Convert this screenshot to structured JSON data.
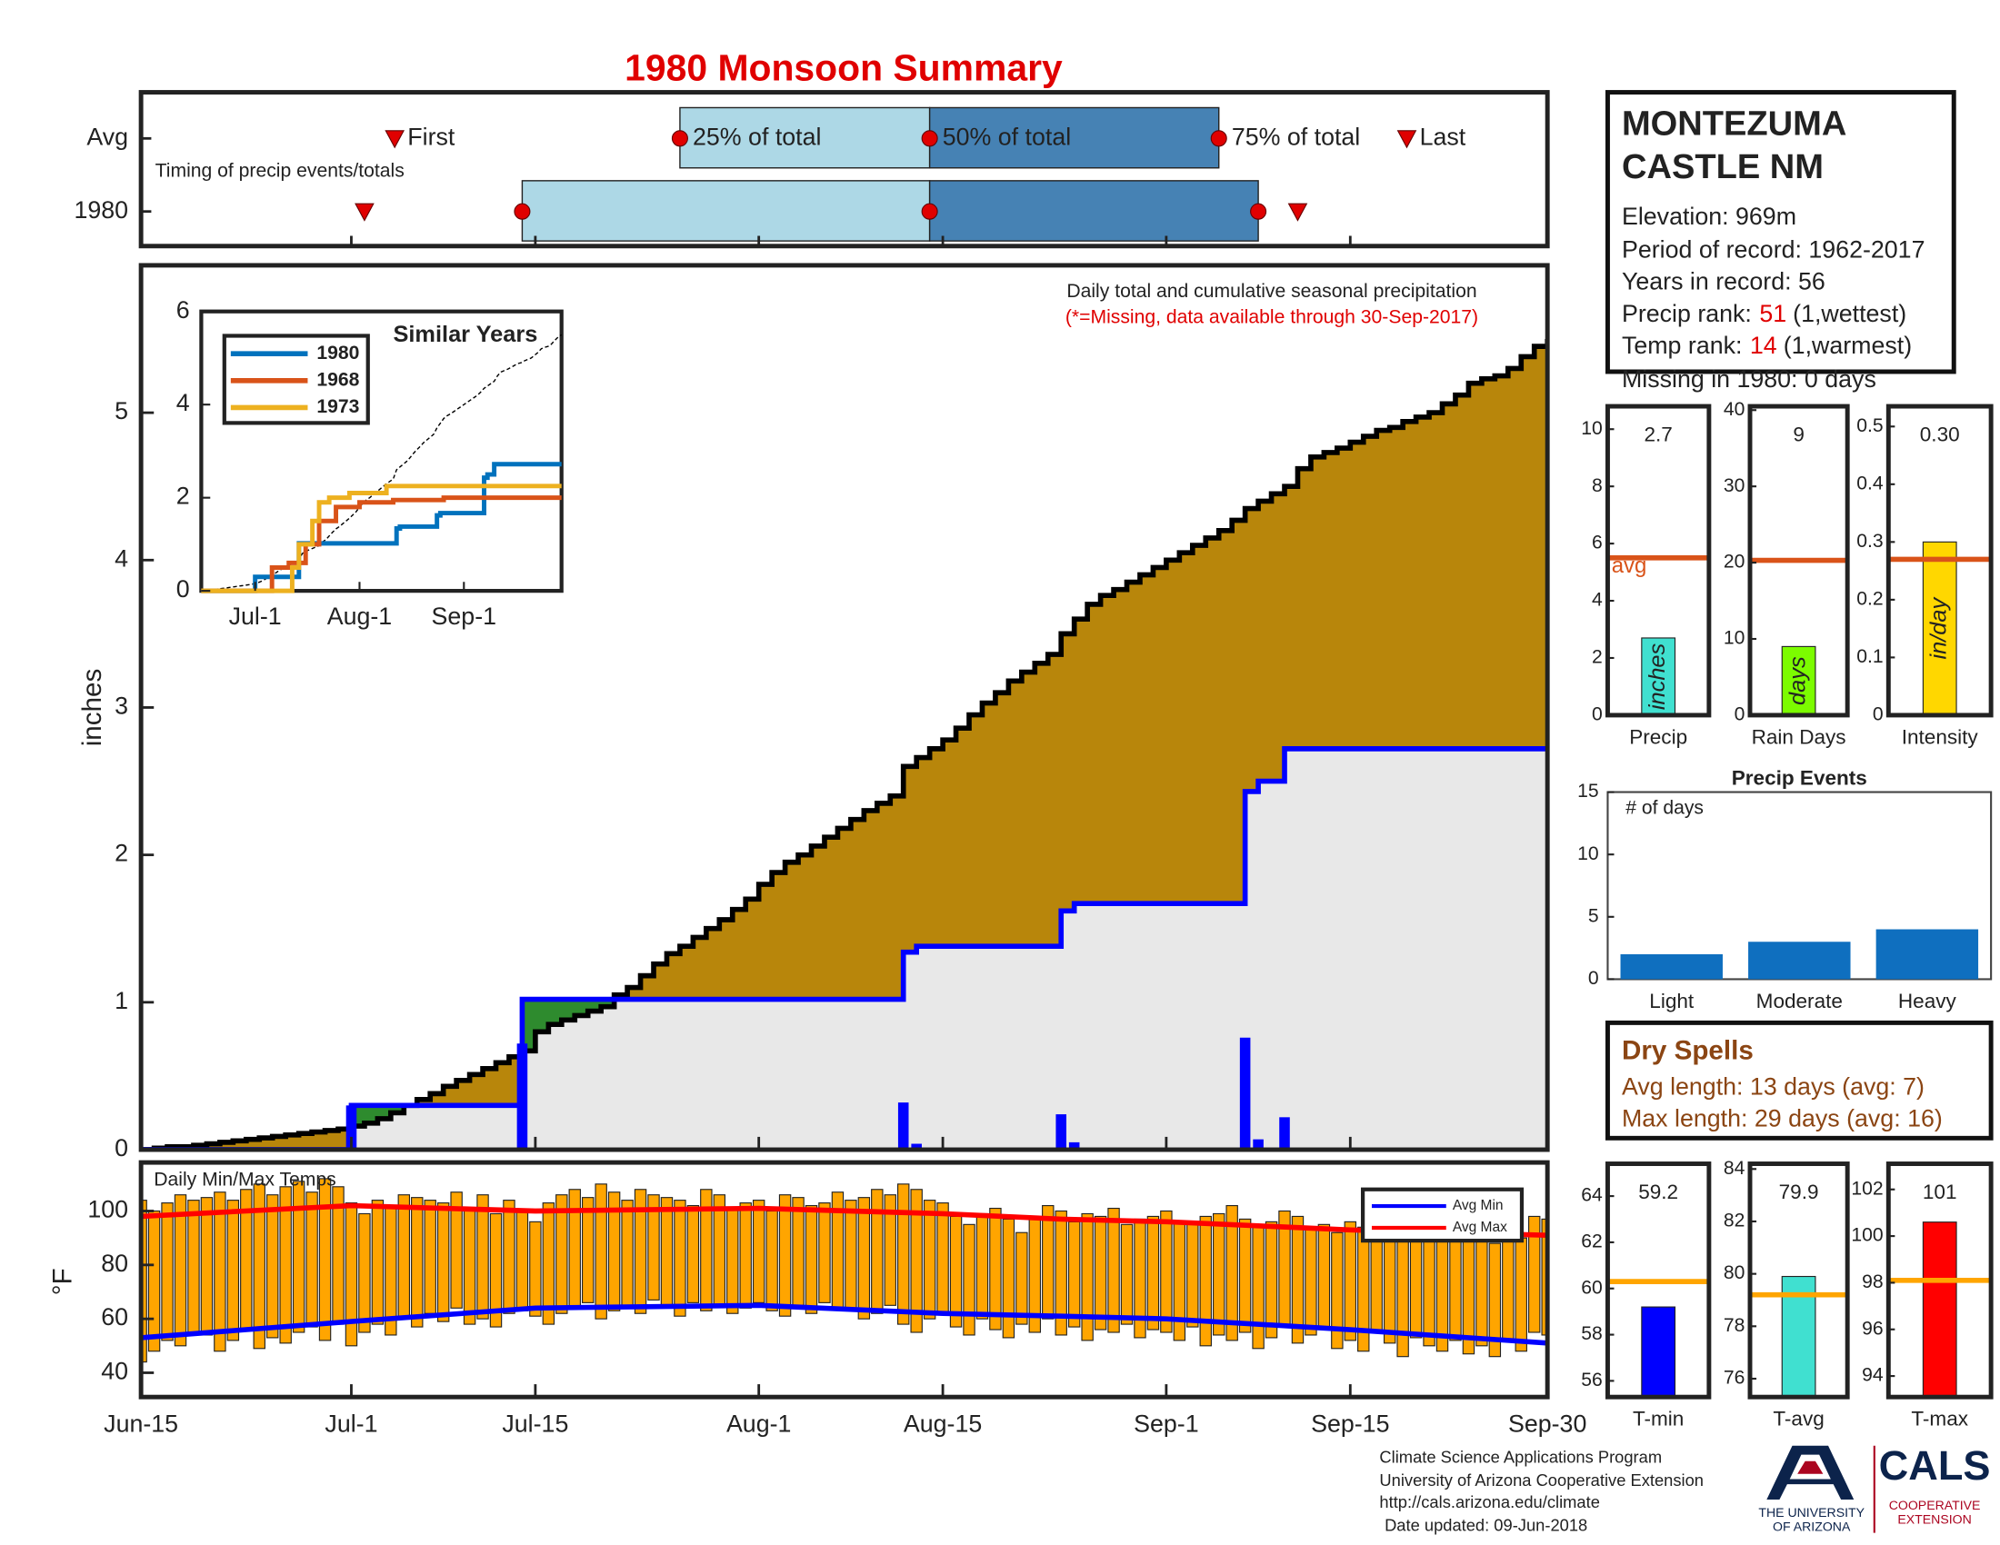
{
  "chart_data": [
    {
      "type": "timing",
      "title": "1980 Monsoon Summary",
      "annotation": "Timing of precip events/totals",
      "marker_labels": [
        "First",
        "25% of total",
        "50% of total",
        "75% of total",
        "Last"
      ],
      "series": [
        {
          "name": "Avg",
          "values": [
            19.3,
            41,
            60,
            82,
            96.3
          ]
        },
        {
          "name": "1980",
          "values": [
            17,
            29,
            60,
            85,
            88
          ]
        }
      ],
      "xlim": [
        0,
        107
      ],
      "box_colors": [
        "#add8e6",
        "#4682b4"
      ],
      "marker_color": "#e00000"
    },
    {
      "type": "cumulative-precip",
      "annotation": "Daily total and cumulative seasonal precipitation",
      "note": "(*=Missing, data available through 30-Sep-2017)",
      "ylabel": "inches",
      "xlim": [
        0,
        107
      ],
      "ylim": [
        0,
        6
      ],
      "yticks": [
        0,
        1,
        2,
        3,
        4,
        5
      ],
      "x": [
        0,
        1,
        2,
        3,
        4,
        5,
        6,
        7,
        8,
        9,
        10,
        11,
        12,
        13,
        14,
        15,
        16,
        17,
        18,
        19,
        20,
        21,
        22,
        23,
        24,
        25,
        26,
        27,
        28,
        29,
        30,
        31,
        32,
        33,
        34,
        35,
        36,
        37,
        38,
        39,
        40,
        41,
        42,
        43,
        44,
        45,
        46,
        47,
        48,
        49,
        50,
        51,
        52,
        53,
        54,
        55,
        56,
        57,
        58,
        59,
        60,
        61,
        62,
        63,
        64,
        65,
        66,
        67,
        68,
        69,
        70,
        71,
        72,
        73,
        74,
        75,
        76,
        77,
        78,
        79,
        80,
        81,
        82,
        83,
        84,
        85,
        86,
        87,
        88,
        89,
        90,
        91,
        92,
        93,
        94,
        95,
        96,
        97,
        98,
        99,
        100,
        101,
        102,
        103,
        104,
        105,
        106,
        107
      ],
      "average": {
        "color": "#b8860b",
        "values": [
          0,
          0.01,
          0.02,
          0.02,
          0.03,
          0.04,
          0.05,
          0.06,
          0.07,
          0.08,
          0.09,
          0.1,
          0.11,
          0.12,
          0.13,
          0.14,
          0.16,
          0.18,
          0.21,
          0.25,
          0.3,
          0.34,
          0.38,
          0.43,
          0.47,
          0.51,
          0.55,
          0.59,
          0.63,
          0.67,
          0.8,
          0.85,
          0.88,
          0.91,
          0.94,
          0.97,
          1.05,
          1.1,
          1.18,
          1.26,
          1.33,
          1.38,
          1.44,
          1.5,
          1.56,
          1.63,
          1.7,
          1.8,
          1.88,
          1.95,
          2.0,
          2.06,
          2.12,
          2.18,
          2.24,
          2.3,
          2.35,
          2.4,
          2.6,
          2.66,
          2.72,
          2.78,
          2.86,
          2.95,
          3.03,
          3.1,
          3.18,
          3.24,
          3.3,
          3.36,
          3.5,
          3.6,
          3.7,
          3.76,
          3.8,
          3.85,
          3.9,
          3.95,
          4.0,
          4.05,
          4.1,
          4.15,
          4.2,
          4.27,
          4.35,
          4.4,
          4.45,
          4.5,
          4.62,
          4.7,
          4.73,
          4.76,
          4.8,
          4.84,
          4.88,
          4.9,
          4.94,
          4.97,
          5.0,
          5.06,
          5.12,
          5.2,
          5.23,
          5.25,
          5.3,
          5.38,
          5.45,
          5.5
        ]
      },
      "season": {
        "color": "#0000ff",
        "fill": "#e8e8e8",
        "above_color": "#2e8b2e",
        "x": [
          0,
          16,
          29,
          58,
          59,
          70,
          71,
          84,
          85,
          87,
          107
        ],
        "values": [
          0,
          0.3,
          1.02,
          1.34,
          1.38,
          1.62,
          1.67,
          2.43,
          2.5,
          2.72,
          2.72
        ]
      },
      "daily": {
        "color": "#0000ff",
        "x": [
          16,
          29,
          58,
          59,
          70,
          71,
          84,
          85,
          87
        ],
        "values": [
          0.3,
          0.72,
          0.32,
          0.04,
          0.24,
          0.05,
          0.76,
          0.07,
          0.22
        ]
      }
    },
    {
      "type": "similar-years",
      "title": "Similar Years",
      "xlim": [
        0,
        107
      ],
      "ylim": [
        0,
        6
      ],
      "yticks": [
        0,
        2,
        4,
        6
      ],
      "xticks": [
        {
          "value": 16,
          "label": "Jul-1"
        },
        {
          "value": 47,
          "label": "Aug-1"
        },
        {
          "value": 78,
          "label": "Sep-1"
        }
      ],
      "series": [
        {
          "name": "1980",
          "color": "#0072bd",
          "x": [
            0,
            16,
            29,
            58,
            59,
            70,
            71,
            84,
            85,
            87,
            107
          ],
          "values": [
            0,
            0.3,
            1.02,
            1.34,
            1.38,
            1.62,
            1.67,
            2.43,
            2.5,
            2.72,
            2.72
          ]
        },
        {
          "name": "1968",
          "color": "#d95319",
          "x": [
            0,
            21,
            26,
            31,
            35,
            40,
            47,
            57,
            72,
            107
          ],
          "values": [
            0,
            0.5,
            0.6,
            1.0,
            1.5,
            1.8,
            1.9,
            1.95,
            2.0,
            2.0
          ]
        },
        {
          "name": "1973",
          "color": "#edb120",
          "x": [
            0,
            27,
            29,
            33,
            35,
            38,
            44,
            55,
            107
          ],
          "values": [
            0,
            0.5,
            1.0,
            1.5,
            1.9,
            2.0,
            2.1,
            2.25,
            2.25
          ]
        }
      ]
    },
    {
      "type": "temp-bars",
      "title": "Daily Min/Max Temps",
      "ylabel": "°F",
      "xlim": [
        0,
        107
      ],
      "ylim": [
        31,
        118
      ],
      "yticks": [
        40,
        60,
        80,
        100
      ],
      "xticks": [
        {
          "value": 0,
          "label": "Jun-15"
        },
        {
          "value": 16,
          "label": "Jul-1"
        },
        {
          "value": 30,
          "label": "Jul-15"
        },
        {
          "value": 47,
          "label": "Aug-1"
        },
        {
          "value": 61,
          "label": "Aug-15"
        },
        {
          "value": 78,
          "label": "Sep-1"
        },
        {
          "value": 92,
          "label": "Sep-15"
        },
        {
          "value": 107,
          "label": "Sep-30"
        }
      ],
      "bar_color": "#ffa500",
      "legend": "upper right",
      "max": [
        104,
        100,
        103,
        106,
        104,
        105,
        107,
        104,
        108,
        110,
        106,
        109,
        111,
        107,
        112,
        109,
        103,
        99,
        104,
        102,
        106,
        105,
        104,
        103,
        107,
        101,
        106,
        99,
        104,
        100,
        96,
        103,
        106,
        108,
        105,
        110,
        107,
        104,
        108,
        106,
        105,
        104,
        102,
        108,
        106,
        101,
        103,
        104,
        100,
        106,
        105,
        102,
        103,
        107,
        104,
        105,
        108,
        106,
        110,
        108,
        104,
        103,
        98,
        95,
        99,
        101,
        97,
        92,
        98,
        102,
        100,
        96,
        99,
        98,
        101,
        95,
        97,
        98,
        100,
        96,
        95,
        98,
        99,
        102,
        97,
        94,
        96,
        100,
        98,
        93,
        95,
        92,
        96,
        94,
        91,
        90,
        95,
        92,
        90,
        93,
        89,
        94,
        91,
        88,
        95,
        90,
        98,
        97
      ],
      "min": [
        44,
        48,
        52,
        50,
        55,
        54,
        48,
        52,
        56,
        49,
        53,
        51,
        55,
        57,
        52,
        58,
        50,
        55,
        58,
        54,
        60,
        57,
        62,
        59,
        64,
        58,
        60,
        57,
        62,
        63,
        61,
        58,
        62,
        64,
        66,
        60,
        63,
        65,
        62,
        67,
        64,
        61,
        66,
        63,
        65,
        62,
        64,
        66,
        63,
        61,
        65,
        62,
        66,
        64,
        63,
        60,
        62,
        65,
        58,
        55,
        60,
        62,
        57,
        54,
        60,
        56,
        53,
        58,
        55,
        60,
        54,
        57,
        52,
        56,
        55,
        58,
        53,
        56,
        55,
        52,
        57,
        50,
        54,
        52,
        55,
        49,
        53,
        58,
        51,
        54,
        56,
        49,
        52,
        48,
        55,
        51,
        46,
        53,
        50,
        48,
        52,
        47,
        50,
        46,
        52,
        48,
        55,
        54
      ],
      "series": [
        {
          "name": "Avg Min",
          "color": "#0000ff",
          "x": [
            0,
            16,
            30,
            47,
            61,
            70,
            78,
            92,
            107
          ],
          "values": [
            53,
            59,
            64,
            65,
            62,
            61,
            60,
            56,
            51
          ]
        },
        {
          "name": "Avg Max",
          "color": "#ff0000",
          "x": [
            0,
            16,
            30,
            47,
            61,
            70,
            78,
            92,
            107
          ],
          "values": [
            98,
            102,
            100,
            101,
            99,
            97,
            96,
            93,
            91
          ]
        }
      ]
    },
    {
      "type": "summary-bar",
      "xlabel": "Precip",
      "unit_label": "inches",
      "value": 2.7,
      "average": 5.5,
      "avg_label": "avg",
      "ylim": [
        0,
        10.8
      ],
      "yticks": [
        0,
        2,
        4,
        6,
        8,
        10
      ],
      "color": "#40e0d0",
      "avg_color": "#d95319"
    },
    {
      "type": "summary-bar",
      "xlabel": "Rain Days",
      "unit_label": "days",
      "value": 9,
      "average": 20.3,
      "ylim": [
        0,
        40.5
      ],
      "yticks": [
        0,
        10,
        20,
        30,
        40
      ],
      "color": "#7cfc00",
      "avg_color": "#d95319"
    },
    {
      "type": "summary-bar",
      "xlabel": "Intensity",
      "unit_label": "in/day",
      "value": 0.3,
      "value_label": "0.30",
      "average": 0.27,
      "ylim": [
        0,
        0.535
      ],
      "yticks": [
        0,
        0.1,
        0.2,
        0.3,
        0.4,
        0.5
      ],
      "color": "#ffd700",
      "avg_color": "#d95319"
    },
    {
      "type": "bar",
      "title": "Precip Events",
      "annotation": "# of days",
      "categories": [
        "Light",
        "Moderate",
        "Heavy"
      ],
      "values": [
        2,
        3,
        4
      ],
      "ylim": [
        0,
        15
      ],
      "yticks": [
        0,
        5,
        10,
        15
      ],
      "color": "#0f6fbf"
    },
    {
      "type": "summary-bar",
      "xlabel": "T-min",
      "value": 59.2,
      "average": 60.3,
      "ylim": [
        55.3,
        65.4
      ],
      "yticks": [
        56,
        58,
        60,
        62,
        64
      ],
      "color": "#0000ff",
      "avg_color": "#ffa500"
    },
    {
      "type": "summary-bar",
      "xlabel": "T-avg",
      "value": 79.9,
      "average": 79.2,
      "ylim": [
        75.3,
        84.2
      ],
      "yticks": [
        76,
        78,
        80,
        82,
        84
      ],
      "color": "#40e0d0",
      "avg_color": "#ffa500"
    },
    {
      "type": "summary-bar",
      "xlabel": "T-max",
      "value": 100.6,
      "value_label": "101",
      "average": 98.1,
      "ylim": [
        93.1,
        103.1
      ],
      "yticks": [
        94,
        96,
        98,
        100,
        102
      ],
      "color": "#ff0000",
      "avg_color": "#ffa500"
    }
  ],
  "station": {
    "name_lines": [
      "MONTEZUMA",
      "CASTLE NM"
    ],
    "lines": [
      "Elevation: 969m",
      "Period of record: 1962-2017",
      "Years in record: 56"
    ],
    "precip_rank": {
      "label": "Precip rank:",
      "value": 51,
      "note": "(1,wettest)"
    },
    "temp_rank": {
      "label": "Temp rank:",
      "value": 14,
      "note": "(1,warmest)"
    },
    "missing": "Missing in 1980: 0 days"
  },
  "dry_spells": {
    "title": "Dry Spells",
    "lines": [
      "Avg length: 13 days (avg: 7)",
      "Max length: 29 days (avg: 16)"
    ]
  },
  "footer": {
    "lines": [
      "Climate Science Applications Program",
      "University of Arizona Cooperative Extension",
      "http://cals.arizona.edu/climate",
      "Date updated: 09-Jun-2018"
    ],
    "university": [
      "THE UNIVERSITY",
      "OF ARIZONA"
    ],
    "cals": "CALS",
    "extension": [
      "COOPERATIVE",
      "EXTENSION"
    ]
  }
}
